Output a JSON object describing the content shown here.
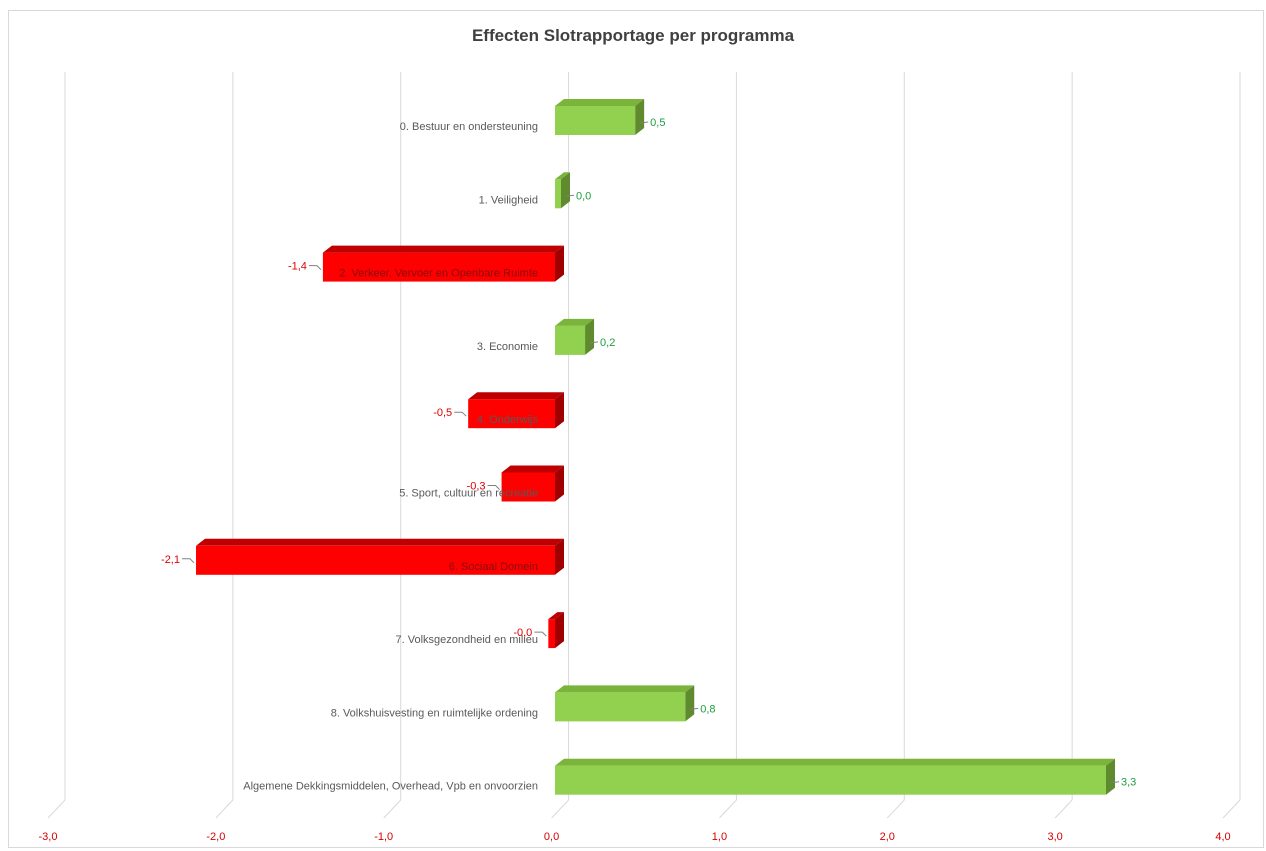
{
  "chart_data": {
    "type": "bar",
    "orientation": "horizontal",
    "title": "Effecten Slotrapportage per programma",
    "xlabel": "",
    "ylabel": "",
    "xlim": [
      -3.0,
      4.0
    ],
    "grid": true,
    "legend": "none",
    "x_ticks": [
      "-3,0",
      "-2,0",
      "-1,0",
      "0,0",
      "1,0",
      "2,0",
      "3,0",
      "4,0"
    ],
    "categories": [
      "0. Bestuur en ondersteuning",
      "1. Veiligheid",
      "2. Verkeer, Vervoer en Openbare Ruimte",
      "3. Economie",
      "4. Onderwijs",
      "5. Sport, cultuur en recreatie",
      "6. Sociaal Domein",
      "7. Volksgezondheid en milieu",
      "8. Volkshuisvesting en ruimtelijke ordening",
      "Algemene Dekkingsmiddelen, Overhead, Vpb en onvoorzien"
    ],
    "values": [
      0.48,
      0.03,
      -1.39,
      0.18,
      -0.52,
      -0.32,
      -2.15,
      -0.04,
      0.78,
      3.3
    ],
    "value_labels": [
      "0,5",
      "0,0",
      "-1,4",
      "0,2",
      "-0,5",
      "-0,3",
      "-2,1",
      "-0,0",
      "0,8",
      "3,3"
    ],
    "colors": {
      "positive": "#92d050",
      "positive_top": "#7ab43a",
      "positive_side": "#5f8a2e",
      "negative": "#ff0000",
      "negative_top": "#c00000",
      "negative_side": "#a00000",
      "grid": "#d9d9d9",
      "tick_label": "#d40000",
      "value_positive": "#1b9e3e",
      "value_negative": "#e00000"
    }
  }
}
